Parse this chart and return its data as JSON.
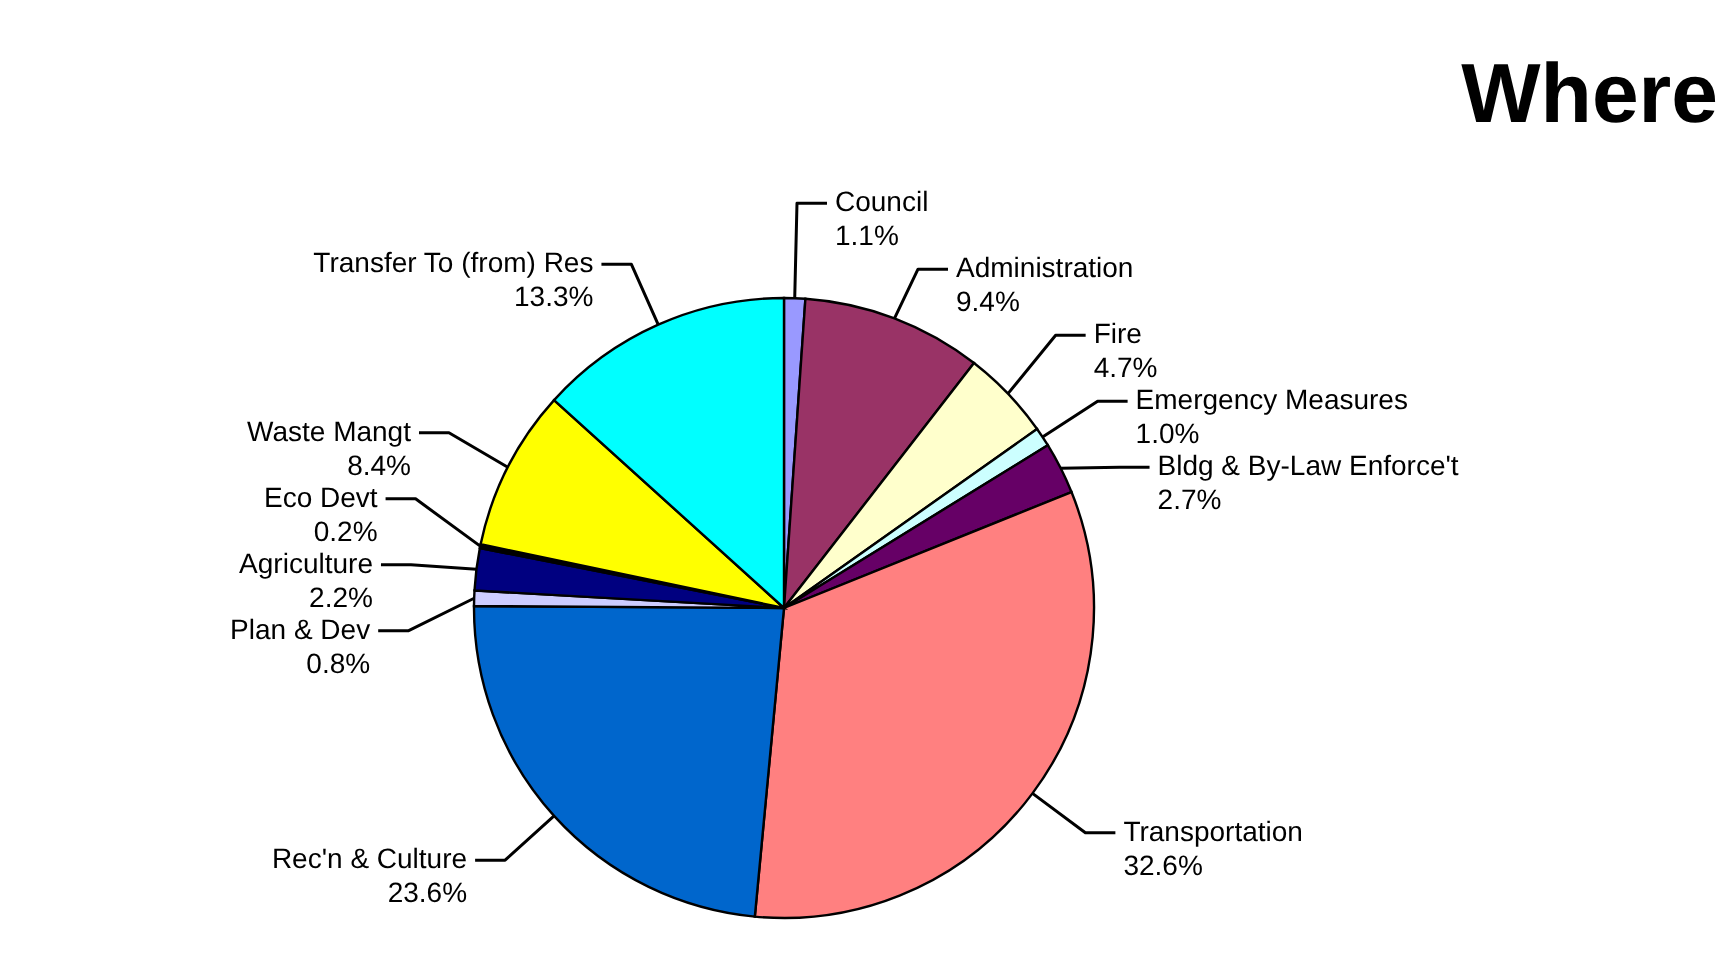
{
  "chart_data": {
    "type": "pie",
    "title": "Where",
    "categories": [
      "Council",
      "Administration",
      "Fire",
      "Emergency Measures",
      "Bldg & By-Law Enforce't",
      "Transportation",
      "Rec'n & Culture",
      "Plan & Dev",
      "Agriculture",
      "Eco Devt",
      "Waste Mangt",
      "Transfer To (from) Res"
    ],
    "values": [
      1.1,
      9.4,
      4.7,
      1.0,
      2.7,
      32.6,
      23.6,
      0.8,
      2.2,
      0.2,
      8.4,
      13.3
    ],
    "value_labels": [
      "1.1%",
      "9.4%",
      "4.7%",
      "1.0%",
      "2.7%",
      "32.6%",
      "23.6%",
      "0.8%",
      "2.2%",
      "0.2%",
      "8.4%",
      "13.3%"
    ],
    "colors": [
      "#9999ff",
      "#993366",
      "#ffffcc",
      "#ccffff",
      "#660066",
      "#ff8080",
      "#0066cc",
      "#ccccff",
      "#000080",
      "#000000",
      "#ffff00",
      "#00ffff"
    ]
  }
}
